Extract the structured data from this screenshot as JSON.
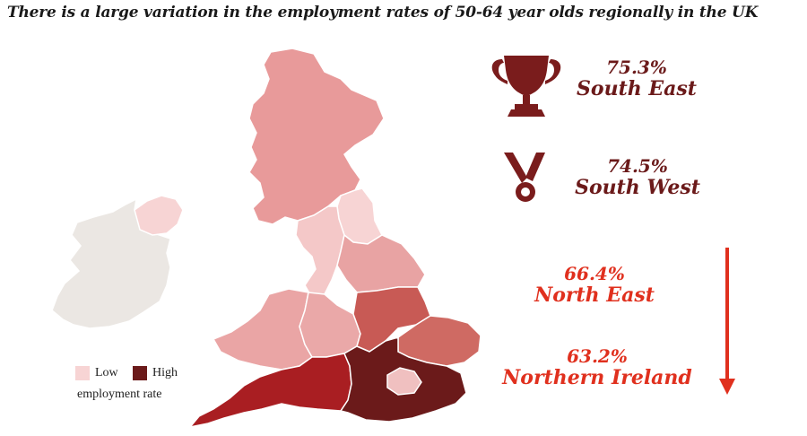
{
  "title": "There is a large variation in the employment rates of 50-64 year olds regionally in the UK",
  "legend": {
    "low_label": "Low",
    "high_label": "High",
    "caption": "employment rate",
    "low_color": "#f7d4d4",
    "high_color": "#6b1a1a"
  },
  "highlights": [
    {
      "value": "75.3%",
      "region": "South East",
      "icon": "trophy-icon"
    },
    {
      "value": "74.5%",
      "region": "South West",
      "icon": "medal-icon"
    },
    {
      "value": "66.4%",
      "region": "North East"
    },
    {
      "value": "63.2%",
      "region": "Northern Ireland"
    }
  ],
  "arrow_icon": "down-arrow-icon",
  "colors": {
    "dark_text": "#6b1a1a",
    "red_text": "#e0301e",
    "ireland": "#ebe7e3",
    "scotland": "#e89a9a",
    "north_east": "#f7d4d4",
    "north_west": "#f4c8c8",
    "yorkshire": "#e8a3a3",
    "wales": "#eaa5a5",
    "west_midlands": "#eaa8a8",
    "east_midlands": "#c85a55",
    "east_of_england": "#cf6a63",
    "south_west": "#a91e22",
    "south_east": "#6b1a1a",
    "london": "#f0c0c0"
  }
}
